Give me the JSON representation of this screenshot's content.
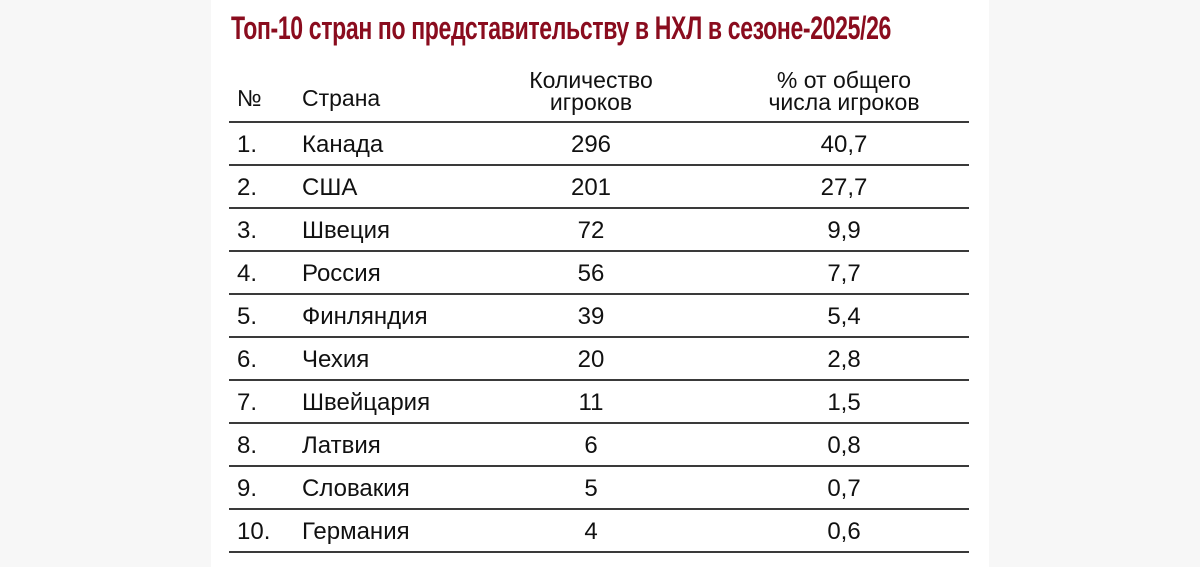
{
  "title": "Топ-10 стран по представительству в НХЛ в сезоне-2025/26",
  "table": {
    "headers": {
      "num": "№",
      "country": "Страна",
      "count_line1": "Количество",
      "count_line2": "игроков",
      "pct_line1": "% от общего",
      "pct_line2": "числа игроков"
    },
    "rows": [
      {
        "num": "1.",
        "country": "Канада",
        "count": "296",
        "pct": "40,7"
      },
      {
        "num": "2.",
        "country": "США",
        "count": "201",
        "pct": "27,7"
      },
      {
        "num": "3.",
        "country": "Швеция",
        "count": "72",
        "pct": "9,9"
      },
      {
        "num": "4.",
        "country": "Россия",
        "count": "56",
        "pct": "7,7"
      },
      {
        "num": "5.",
        "country": "Финляндия",
        "count": "39",
        "pct": "5,4"
      },
      {
        "num": "6.",
        "country": "Чехия",
        "count": "20",
        "pct": "2,8"
      },
      {
        "num": "7.",
        "country": "Швейцария",
        "count": "11",
        "pct": "1,5"
      },
      {
        "num": "8.",
        "country": "Латвия",
        "count": "6",
        "pct": "0,8"
      },
      {
        "num": "9.",
        "country": "Словакия",
        "count": "5",
        "pct": "0,7"
      },
      {
        "num": "10.",
        "country": "Германия",
        "count": "4",
        "pct": "0,6"
      }
    ]
  },
  "colors": {
    "title": "#8a0c1e",
    "text": "#111111",
    "rule": "#3a3a3a",
    "background": "#f7f7f7",
    "panel": "#ffffff"
  }
}
